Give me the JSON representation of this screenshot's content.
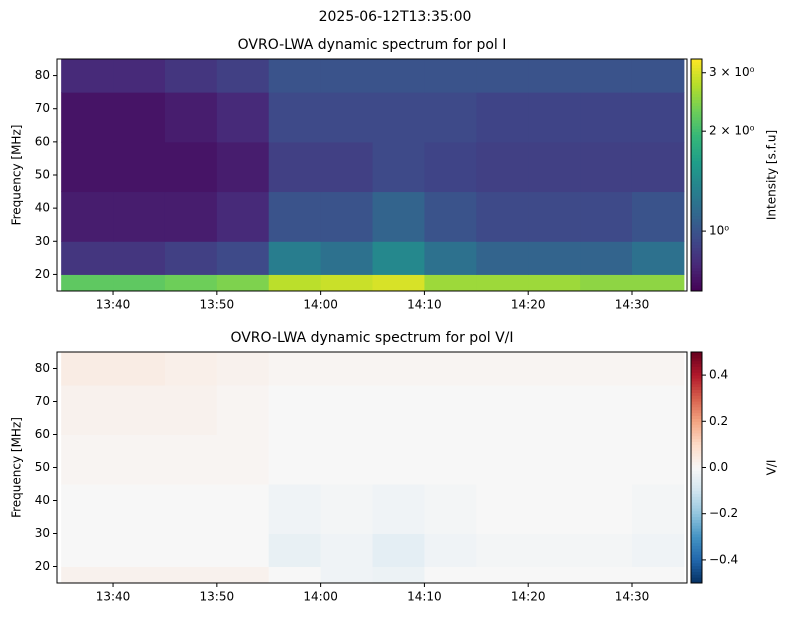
{
  "title": "2025-06-12T13:35:00",
  "chart_data": [
    {
      "type": "heatmap",
      "title": "OVRO-LWA dynamic spectrum for pol I",
      "ylabel": "Frequency [MHz]",
      "colorbar_label": "Intensity [s.f.u]",
      "colormap": "viridis",
      "log": true,
      "clim": [
        0.66,
        3.3
      ],
      "cticks": [
        {
          "value": 1,
          "label": "10⁰"
        },
        {
          "value": 2,
          "label": "2 × 10⁰"
        },
        {
          "value": 3,
          "label": "3 × 10⁰"
        }
      ],
      "xlim": [
        814.6,
        875.3
      ],
      "xticks": [
        {
          "value": 820,
          "label": "13:40"
        },
        {
          "value": 830,
          "label": "13:50"
        },
        {
          "value": 840,
          "label": "14:00"
        },
        {
          "value": 850,
          "label": "14:10"
        },
        {
          "value": 860,
          "label": "14:20"
        },
        {
          "value": 870,
          "label": "14:30"
        }
      ],
      "ylim": [
        15,
        85
      ],
      "yticks": [
        20,
        30,
        40,
        50,
        60,
        70,
        80
      ],
      "x_edges": [
        815,
        820,
        825,
        830,
        835,
        840,
        845,
        850,
        855,
        860,
        865,
        870,
        875
      ],
      "y_edges": [
        15,
        20,
        30,
        45,
        60,
        75,
        85
      ],
      "z": [
        [
          2.2,
          2.2,
          2.3,
          2.4,
          2.8,
          2.9,
          3.0,
          2.6,
          2.6,
          2.6,
          2.5,
          2.5
        ],
        [
          0.85,
          0.85,
          0.9,
          0.95,
          1.3,
          1.2,
          1.4,
          1.2,
          1.1,
          1.1,
          1.1,
          1.2
        ],
        [
          0.75,
          0.75,
          0.75,
          0.8,
          1.0,
          1.0,
          1.1,
          1.0,
          0.95,
          0.95,
          0.95,
          1.0
        ],
        [
          0.72,
          0.72,
          0.72,
          0.75,
          0.9,
          0.9,
          0.95,
          0.92,
          0.9,
          0.9,
          0.9,
          0.9
        ],
        [
          0.72,
          0.72,
          0.75,
          0.8,
          0.95,
          0.95,
          0.95,
          0.95,
          0.92,
          0.92,
          0.92,
          0.92
        ],
        [
          0.8,
          0.8,
          0.85,
          0.9,
          1.0,
          1.0,
          1.0,
          1.0,
          1.0,
          1.0,
          1.0,
          1.0
        ]
      ]
    },
    {
      "type": "heatmap",
      "title": "OVRO-LWA dynamic spectrum for pol V/I",
      "ylabel": "Frequency [MHz]",
      "colorbar_label": "V/I",
      "colormap": "RdBu_r",
      "log": false,
      "clim": [
        -0.5,
        0.5
      ],
      "cticks": [
        {
          "value": -0.4,
          "label": "−0.4"
        },
        {
          "value": -0.2,
          "label": "−0.2"
        },
        {
          "value": 0,
          "label": "0.0"
        },
        0.2,
        0.4
      ],
      "xlim": [
        814.6,
        875.3
      ],
      "xticks": [
        {
          "value": 820,
          "label": "13:40"
        },
        {
          "value": 830,
          "label": "13:50"
        },
        {
          "value": 840,
          "label": "14:00"
        },
        {
          "value": 850,
          "label": "14:10"
        },
        {
          "value": 860,
          "label": "14:20"
        },
        {
          "value": 870,
          "label": "14:30"
        }
      ],
      "ylim": [
        15,
        85
      ],
      "yticks": [
        20,
        30,
        40,
        50,
        60,
        70,
        80
      ],
      "x_edges": [
        815,
        820,
        825,
        830,
        835,
        840,
        845,
        850,
        855,
        860,
        865,
        870,
        875
      ],
      "y_edges": [
        15,
        20,
        30,
        45,
        60,
        75,
        85
      ],
      "z": [
        [
          0.02,
          0.02,
          0.02,
          0.02,
          0.0,
          -0.02,
          -0.03,
          0.0,
          0.0,
          0.0,
          0.0,
          0.0
        ],
        [
          0.0,
          0.0,
          0.0,
          0.0,
          -0.04,
          -0.02,
          -0.05,
          -0.02,
          -0.01,
          -0.01,
          -0.01,
          -0.02
        ],
        [
          0.0,
          0.0,
          0.0,
          0.0,
          -0.02,
          -0.01,
          -0.02,
          -0.01,
          0.0,
          0.0,
          0.0,
          -0.01
        ],
        [
          0.01,
          0.01,
          0.01,
          0.01,
          0.0,
          0.0,
          0.0,
          0.0,
          0.0,
          0.0,
          0.0,
          0.0
        ],
        [
          0.02,
          0.02,
          0.02,
          0.01,
          0.0,
          0.0,
          0.0,
          0.0,
          0.0,
          0.0,
          0.0,
          0.0
        ],
        [
          0.04,
          0.04,
          0.03,
          0.02,
          0.01,
          0.01,
          0.01,
          0.01,
          0.01,
          0.01,
          0.01,
          0.01
        ]
      ]
    }
  ]
}
